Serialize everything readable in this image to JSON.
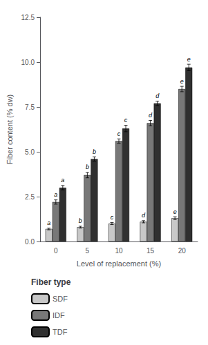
{
  "chart_data": {
    "type": "bar",
    "xlabel": "Level of replacement (%)",
    "ylabel": "Fiber content (% dw)",
    "categories": [
      "0",
      "5",
      "10",
      "15",
      "20"
    ],
    "series": [
      {
        "name": "SDF",
        "color": "#c8c8c8",
        "values": [
          0.7,
          0.8,
          1.0,
          1.1,
          1.3
        ],
        "errors": [
          0.05,
          0.05,
          0.06,
          0.06,
          0.08
        ],
        "labels": [
          "a",
          "b",
          "c",
          "d",
          "e"
        ]
      },
      {
        "name": "IDF",
        "color": "#787878",
        "values": [
          2.2,
          3.7,
          5.6,
          6.6,
          8.5
        ],
        "errors": [
          0.12,
          0.15,
          0.12,
          0.15,
          0.15
        ],
        "labels": [
          "a",
          "b",
          "c",
          "d",
          "e"
        ]
      },
      {
        "name": "TDF",
        "color": "#303030",
        "values": [
          3.0,
          4.6,
          6.3,
          7.7,
          9.7
        ],
        "errors": [
          0.12,
          0.12,
          0.18,
          0.12,
          0.18
        ],
        "labels": [
          "a",
          "b",
          "c",
          "d",
          "e"
        ]
      }
    ],
    "ylim": [
      0,
      12.5
    ],
    "yticks": [
      {
        "value": 0,
        "label": "0.0"
      },
      2.5,
      {
        "value": 5,
        "label": "5.0"
      },
      7.5,
      {
        "value": 10,
        "label": "10.0"
      },
      12.5
    ],
    "legend_title": "Fiber type",
    "legend": "bottom",
    "grid": false
  }
}
